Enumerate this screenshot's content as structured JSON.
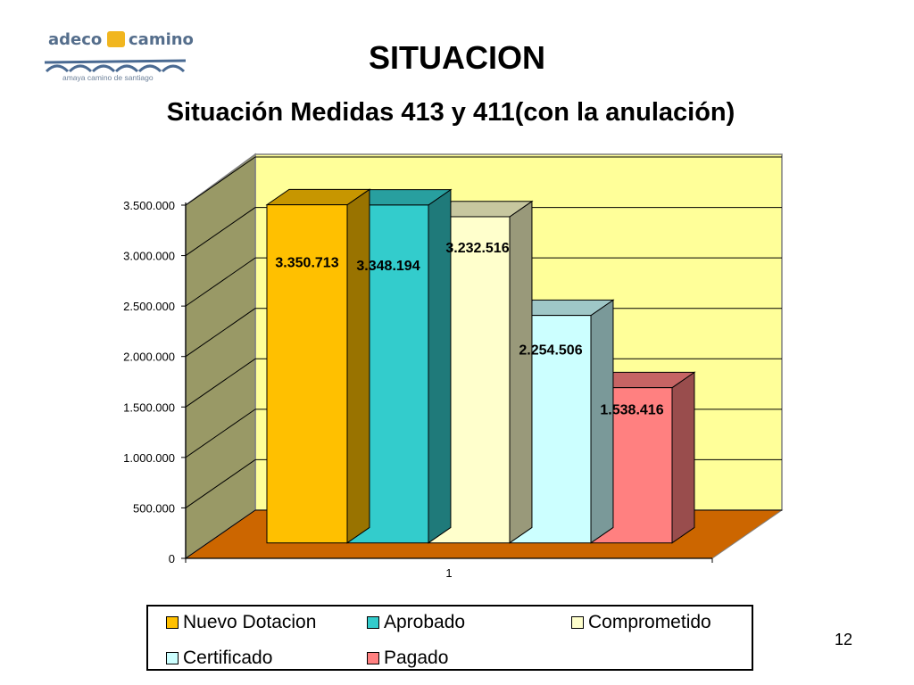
{
  "header": {
    "logo_word_left": "adeco",
    "logo_word_right": "camino",
    "logo_tagline": "amaya camino de santiago",
    "title": "SITUACION",
    "subtitle": "Situación Medidas 413 y 411(con la anulación)"
  },
  "slide": {
    "page_number": "12"
  },
  "chart_data": {
    "type": "bar",
    "view": "3d-clustered-column",
    "categories": [
      "1"
    ],
    "series": [
      {
        "name": "Nuevo Dotacion",
        "values": [
          3350713
        ],
        "label": "3.350.713",
        "color": "#ffc000",
        "legend_col": 0,
        "legend_row": 0
      },
      {
        "name": "Aprobado",
        "values": [
          3348194
        ],
        "label": "3.348.194",
        "color": "#33cccc",
        "legend_col": 1,
        "legend_row": 0
      },
      {
        "name": "Comprometido",
        "values": [
          3232516
        ],
        "label": "3.232.516",
        "color": "#ffffcc",
        "legend_col": 2,
        "legend_row": 0
      },
      {
        "name": "Certificado",
        "values": [
          2254506
        ],
        "label": "2.254.506",
        "color": "#ccffff",
        "legend_col": 0,
        "legend_row": 1
      },
      {
        "name": "Pagado",
        "values": [
          1538416
        ],
        "label": "1.538.416",
        "color": "#ff8080",
        "legend_col": 1,
        "legend_row": 1
      }
    ],
    "ylim": [
      0,
      3500000
    ],
    "yticks": [
      {
        "value": 0,
        "label": "0"
      },
      {
        "value": 500000,
        "label": "500.000"
      },
      {
        "value": 1000000,
        "label": "1.000.000"
      },
      {
        "value": 1500000,
        "label": "1.500.000"
      },
      {
        "value": 2000000,
        "label": "2.000.000"
      },
      {
        "value": 2500000,
        "label": "2.500.000"
      },
      {
        "value": 3000000,
        "label": "3.000.000"
      },
      {
        "value": 3500000,
        "label": "3.500.000"
      }
    ],
    "xlabel": "",
    "ylabel": "",
    "grid": true,
    "legend_position": "bottom",
    "colors": {
      "back_wall": "#ffff99",
      "side_wall": "#999966",
      "floor": "#cc6600"
    }
  }
}
